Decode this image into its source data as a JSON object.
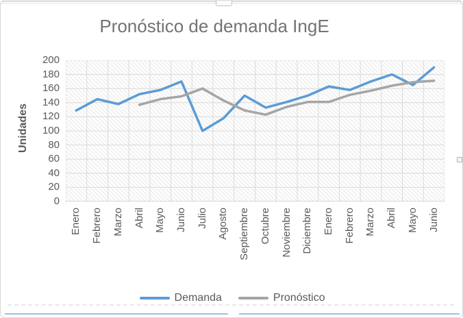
{
  "chart_data": {
    "type": "line",
    "title": "Pronóstico de demanda IngE",
    "ylabel": "Unidades",
    "xlabel": "",
    "categories": [
      "Enero",
      "Febrero",
      "Marzo",
      "Abril",
      "Mayo",
      "Junio",
      "Julio",
      "Agosto",
      "Septiembre",
      "Octubre",
      "Noviembre",
      "Diciembre",
      "Enero",
      "Febrero",
      "Marzo",
      "Abril",
      "Mayo",
      "Junio"
    ],
    "series": [
      {
        "name": "Demanda",
        "color": "#5B9BD5",
        "values": [
          129,
          145,
          138,
          152,
          158,
          170,
          100,
          118,
          150,
          133,
          141,
          150,
          163,
          158,
          170,
          180,
          165,
          190
        ]
      },
      {
        "name": "Pronóstico",
        "color": "#A5A5A5",
        "values": [
          null,
          null,
          null,
          137,
          145,
          149,
          160,
          143,
          129,
          123,
          134,
          141,
          141,
          151,
          157,
          164,
          169,
          171
        ]
      }
    ],
    "ylim": [
      0,
      200
    ],
    "y_tick_step": 20,
    "y_tick_labels": [
      "0",
      "20",
      "40",
      "60",
      "80",
      "100",
      "120",
      "140",
      "160",
      "180",
      "200"
    ],
    "grid": true,
    "legend_position": "bottom",
    "plot_area_fill": "light-diagonal-hatch"
  },
  "colors": {
    "title_text": "#737373",
    "axis_text": "#595959",
    "gridline": "#DADADA",
    "hatch": "#EAEAEA",
    "axis_line": "#BFBFBF",
    "selection_border_blue": "#9CC2E5",
    "handle_border": "#C2C2C2"
  }
}
